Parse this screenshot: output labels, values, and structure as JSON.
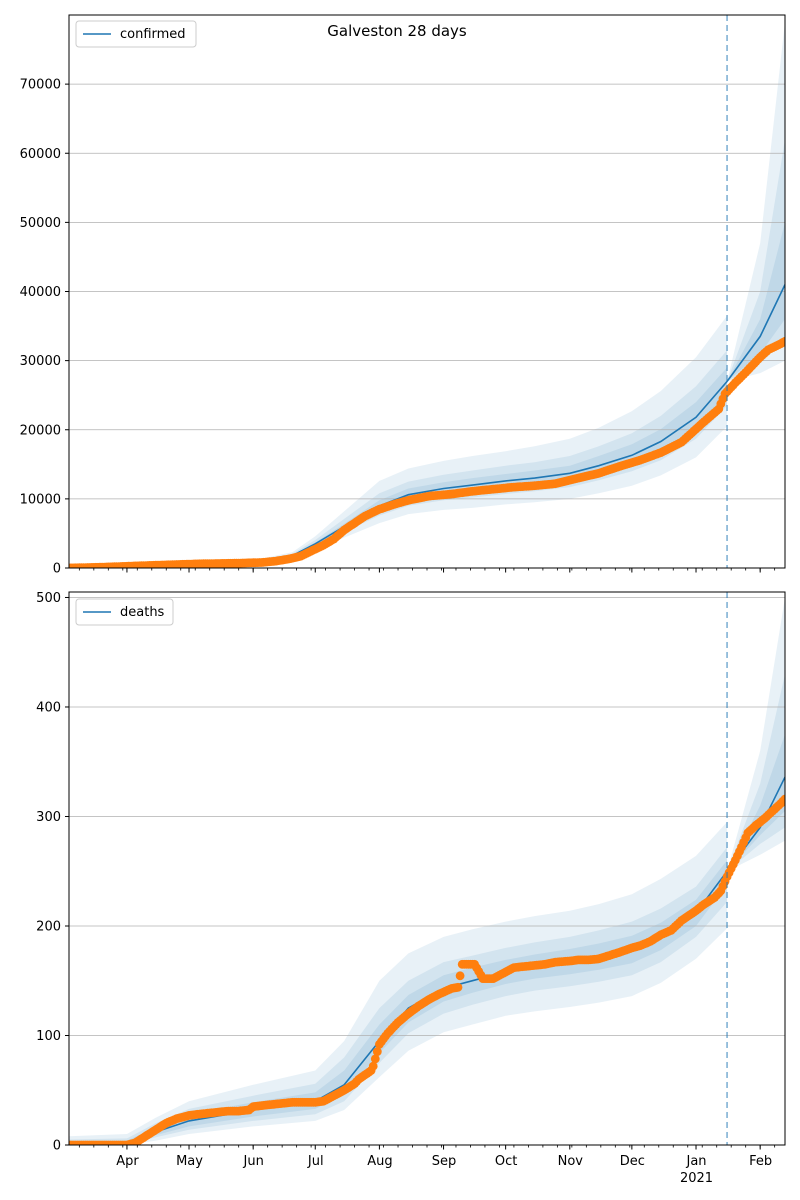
{
  "title": "Galveston 28 days",
  "colors": {
    "model": "#1f77b4",
    "observed": "#ff7f0e",
    "band": "#1f77b4",
    "grid": "#b0b0b0",
    "vline": "#1f77b4"
  },
  "chart_data": [
    {
      "type": "line",
      "legend": "confirmed",
      "legend_position": "top-left",
      "grid": "y",
      "x_range": [
        "2020-03-04",
        "2021-02-13"
      ],
      "ylim": [
        0,
        80000
      ],
      "yticks": [
        0,
        10000,
        20000,
        30000,
        40000,
        50000,
        60000,
        70000
      ],
      "forecast_start": "2021-01-16",
      "model": {
        "x": [
          "2020-03-04",
          "2020-04-01",
          "2020-05-01",
          "2020-06-01",
          "2020-06-20",
          "2020-07-01",
          "2020-07-15",
          "2020-08-01",
          "2020-08-15",
          "2020-09-01",
          "2020-09-15",
          "2020-10-01",
          "2020-10-15",
          "2020-11-01",
          "2020-11-15",
          "2020-12-01",
          "2020-12-15",
          "2021-01-01",
          "2021-01-16",
          "2021-02-01",
          "2021-02-13"
        ],
        "y": [
          0,
          200,
          600,
          900,
          1800,
          3500,
          6000,
          9000,
          10600,
          11500,
          12000,
          12600,
          13000,
          13700,
          14800,
          16300,
          18300,
          21800,
          27000,
          33500,
          41000
        ]
      },
      "bands_upper": [
        [
          0,
          230,
          720,
          1100,
          2300,
          4600,
          8200,
          12600,
          14400,
          15500,
          16200,
          16900,
          17600,
          18700,
          20300,
          22700,
          25600,
          30500,
          36500,
          null,
          null
        ],
        [
          0,
          215,
          660,
          1000,
          2050,
          4050,
          7100,
          10800,
          12500,
          13500,
          14100,
          14800,
          15300,
          16200,
          17600,
          19500,
          22000,
          26300,
          31500,
          null,
          null
        ],
        [
          0,
          207,
          630,
          950,
          1900,
          3700,
          6400,
          9800,
          11500,
          12400,
          13000,
          13600,
          14100,
          14800,
          16200,
          17900,
          20100,
          24000,
          29000,
          null,
          null
        ],
        [
          0,
          null,
          null,
          null,
          null,
          null,
          null,
          null,
          null,
          null,
          null,
          null,
          null,
          null,
          null,
          null,
          null,
          null,
          27000,
          47000,
          79000
        ],
        [
          0,
          null,
          null,
          null,
          null,
          null,
          null,
          null,
          null,
          null,
          null,
          null,
          null,
          null,
          null,
          null,
          null,
          null,
          27000,
          40000,
          62000
        ],
        [
          0,
          null,
          null,
          null,
          null,
          null,
          null,
          null,
          null,
          null,
          null,
          null,
          null,
          null,
          null,
          null,
          null,
          null,
          27000,
          36000,
          50000
        ]
      ],
      "bands_lower": [
        [
          0,
          170,
          480,
          700,
          1300,
          2500,
          4400,
          6500,
          7800,
          8400,
          8700,
          9200,
          9500,
          10000,
          10800,
          11900,
          13400,
          16000,
          20500,
          null,
          null
        ],
        [
          0,
          185,
          540,
          800,
          1550,
          3000,
          5200,
          7600,
          9000,
          9800,
          10200,
          10700,
          11100,
          11700,
          12700,
          14000,
          15600,
          18700,
          23500,
          null,
          null
        ],
        [
          0,
          193,
          570,
          850,
          1700,
          3300,
          5600,
          8300,
          9800,
          10600,
          11000,
          11600,
          12000,
          12700,
          13700,
          15100,
          17000,
          20200,
          25000,
          null,
          null
        ],
        [
          0,
          null,
          null,
          null,
          null,
          null,
          null,
          null,
          null,
          null,
          null,
          null,
          null,
          null,
          null,
          null,
          null,
          null,
          27000,
          28200,
          30000
        ],
        [
          0,
          null,
          null,
          null,
          null,
          null,
          null,
          null,
          null,
          null,
          null,
          null,
          null,
          null,
          null,
          null,
          null,
          null,
          27000,
          29600,
          33000
        ],
        [
          0,
          null,
          null,
          null,
          null,
          null,
          null,
          null,
          null,
          null,
          null,
          null,
          null,
          null,
          null,
          null,
          null,
          null,
          27000,
          31000,
          36000
        ]
      ],
      "observed": {
        "x": [
          "2020-03-04",
          "2020-03-15",
          "2020-03-28",
          "2020-04-05",
          "2020-04-15",
          "2020-04-25",
          "2020-05-05",
          "2020-05-15",
          "2020-05-25",
          "2020-06-05",
          "2020-06-12",
          "2020-06-18",
          "2020-06-24",
          "2020-06-30",
          "2020-07-05",
          "2020-07-10",
          "2020-07-15",
          "2020-07-20",
          "2020-07-25",
          "2020-08-01",
          "2020-08-08",
          "2020-08-15",
          "2020-08-25",
          "2020-09-05",
          "2020-09-15",
          "2020-09-25",
          "2020-10-05",
          "2020-10-15",
          "2020-10-25",
          "2020-11-05",
          "2020-11-15",
          "2020-11-25",
          "2020-12-05",
          "2020-12-15",
          "2020-12-25",
          "2021-01-05",
          "2021-01-12",
          "2021-01-15",
          "2021-01-20",
          "2021-01-25",
          "2021-02-01",
          "2021-02-05",
          "2021-02-10",
          "2021-02-13"
        ],
        "y": [
          0,
          80,
          200,
          300,
          400,
          500,
          600,
          650,
          700,
          800,
          1000,
          1300,
          1700,
          2600,
          3300,
          4200,
          5500,
          6500,
          7500,
          8500,
          9200,
          9800,
          10400,
          10700,
          11100,
          11400,
          11700,
          11900,
          12200,
          13000,
          13700,
          14700,
          15600,
          16700,
          18200,
          21200,
          23000,
          25200,
          26800,
          28300,
          30500,
          31600,
          32300,
          32800
        ]
      }
    },
    {
      "type": "line",
      "legend": "deaths",
      "legend_position": "top-left",
      "grid": "y",
      "x_range": [
        "2020-03-04",
        "2021-02-13"
      ],
      "ylim": [
        0,
        505
      ],
      "yticks": [
        0,
        100,
        200,
        300,
        400,
        500
      ],
      "xtick_labels": [
        "Apr",
        "May",
        "Jun",
        "Jul",
        "Aug",
        "Sep",
        "Oct",
        "Nov",
        "Dec",
        "Jan",
        "Feb"
      ],
      "xtick_dates": [
        "2020-04-01",
        "2020-05-01",
        "2020-06-01",
        "2020-07-01",
        "2020-08-01",
        "2020-09-01",
        "2020-10-01",
        "2020-11-01",
        "2020-12-01",
        "2021-01-01",
        "2021-02-01"
      ],
      "year_label": "2021",
      "forecast_start": "2021-01-16",
      "model": {
        "x": [
          "2020-03-04",
          "2020-04-01",
          "2020-04-15",
          "2020-05-01",
          "2020-06-01",
          "2020-07-01",
          "2020-07-15",
          "2020-08-01",
          "2020-08-15",
          "2020-09-01",
          "2020-09-15",
          "2020-10-01",
          "2020-10-15",
          "2020-11-01",
          "2020-11-15",
          "2020-12-01",
          "2020-12-15",
          "2021-01-01",
          "2021-01-16",
          "2021-02-01",
          "2021-02-13"
        ],
        "y": [
          0,
          2,
          12,
          22,
          32,
          40,
          55,
          95,
          125,
          143,
          150,
          158,
          163,
          167,
          171,
          178,
          190,
          212,
          250,
          290,
          336
        ]
      },
      "bands_upper": [
        [
          8,
          10,
          25,
          40,
          55,
          68,
          95,
          150,
          175,
          190,
          197,
          204,
          209,
          214,
          220,
          229,
          243,
          264,
          295,
          null,
          null
        ],
        [
          5,
          6,
          20,
          33,
          45,
          56,
          80,
          125,
          150,
          167,
          173,
          180,
          185,
          190,
          196,
          204,
          216,
          236,
          272,
          null,
          null
        ],
        [
          3,
          4,
          16,
          28,
          39,
          48,
          68,
          110,
          137,
          155,
          162,
          169,
          174,
          179,
          184,
          191,
          203,
          224,
          260,
          null,
          null
        ],
        [
          0,
          null,
          null,
          null,
          null,
          null,
          null,
          null,
          null,
          null,
          null,
          null,
          null,
          null,
          null,
          null,
          null,
          null,
          250,
          360,
          500
        ],
        [
          0,
          null,
          null,
          null,
          null,
          null,
          null,
          null,
          null,
          null,
          null,
          null,
          null,
          null,
          null,
          null,
          null,
          null,
          250,
          330,
          430
        ],
        [
          0,
          null,
          null,
          null,
          null,
          null,
          null,
          null,
          null,
          null,
          null,
          null,
          null,
          null,
          null,
          null,
          null,
          null,
          250,
          310,
          375
        ]
      ],
      "bands_lower": [
        [
          0,
          0,
          4,
          10,
          17,
          22,
          32,
          62,
          86,
          103,
          110,
          118,
          122,
          126,
          130,
          136,
          148,
          170,
          198,
          null,
          null
        ],
        [
          0,
          0,
          7,
          14,
          22,
          28,
          40,
          75,
          102,
          120,
          128,
          136,
          141,
          145,
          149,
          155,
          167,
          190,
          222,
          null,
          null
        ],
        [
          0,
          1,
          9,
          17,
          26,
          33,
          46,
          84,
          112,
          131,
          139,
          147,
          152,
          156,
          160,
          166,
          178,
          200,
          238,
          null,
          null
        ],
        [
          0,
          null,
          null,
          null,
          null,
          null,
          null,
          null,
          null,
          null,
          null,
          null,
          null,
          null,
          null,
          null,
          null,
          null,
          250,
          265,
          278
        ],
        [
          0,
          null,
          null,
          null,
          null,
          null,
          null,
          null,
          null,
          null,
          null,
          null,
          null,
          null,
          null,
          null,
          null,
          null,
          250,
          275,
          290
        ],
        [
          0,
          null,
          null,
          null,
          null,
          null,
          null,
          null,
          null,
          null,
          null,
          null,
          null,
          null,
          null,
          null,
          null,
          null,
          250,
          283,
          305
        ]
      ],
      "observed": {
        "x": [
          "2020-03-04",
          "2020-03-20",
          "2020-04-01",
          "2020-04-05",
          "2020-04-10",
          "2020-04-15",
          "2020-04-20",
          "2020-04-25",
          "2020-05-01",
          "2020-05-05",
          "2020-05-10",
          "2020-05-15",
          "2020-05-20",
          "2020-05-25",
          "2020-05-30",
          "2020-06-01",
          "2020-06-05",
          "2020-06-10",
          "2020-06-15",
          "2020-06-20",
          "2020-06-25",
          "2020-06-30",
          "2020-07-01",
          "2020-07-05",
          "2020-07-10",
          "2020-07-15",
          "2020-07-20",
          "2020-07-22",
          "2020-07-25",
          "2020-07-28",
          "2020-07-29",
          "2020-08-01",
          "2020-08-05",
          "2020-08-10",
          "2020-08-15",
          "2020-08-20",
          "2020-08-25",
          "2020-08-30",
          "2020-09-05",
          "2020-09-08",
          "2020-09-10",
          "2020-09-13",
          "2020-09-16",
          "2020-09-20",
          "2020-09-25",
          "2020-10-01",
          "2020-10-05",
          "2020-10-10",
          "2020-10-15",
          "2020-10-20",
          "2020-10-25",
          "2020-11-01",
          "2020-11-05",
          "2020-11-10",
          "2020-11-15",
          "2020-11-20",
          "2020-11-25",
          "2020-12-01",
          "2020-12-05",
          "2020-12-10",
          "2020-12-15",
          "2020-12-20",
          "2020-12-25",
          "2021-01-01",
          "2021-01-05",
          "2021-01-10",
          "2021-01-13",
          "2021-01-16",
          "2021-01-20",
          "2021-01-23",
          "2021-01-26",
          "2021-01-30",
          "2021-02-03",
          "2021-02-07",
          "2021-02-11",
          "2021-02-13"
        ],
        "y": [
          0,
          0,
          0,
          2,
          8,
          14,
          20,
          24,
          27,
          28,
          29,
          30,
          31,
          31,
          32,
          35,
          36,
          37,
          38,
          39,
          39,
          39,
          39,
          40,
          45,
          50,
          56,
          60,
          64,
          68,
          72,
          92,
          102,
          112,
          120,
          127,
          133,
          138,
          143,
          144,
          165,
          165,
          165,
          152,
          152,
          158,
          162,
          163,
          164,
          165,
          167,
          168,
          169,
          169,
          170,
          173,
          176,
          180,
          182,
          186,
          192,
          196,
          205,
          214,
          220,
          226,
          232,
          245,
          260,
          272,
          285,
          292,
          298,
          305,
          312,
          316
        ]
      }
    }
  ]
}
